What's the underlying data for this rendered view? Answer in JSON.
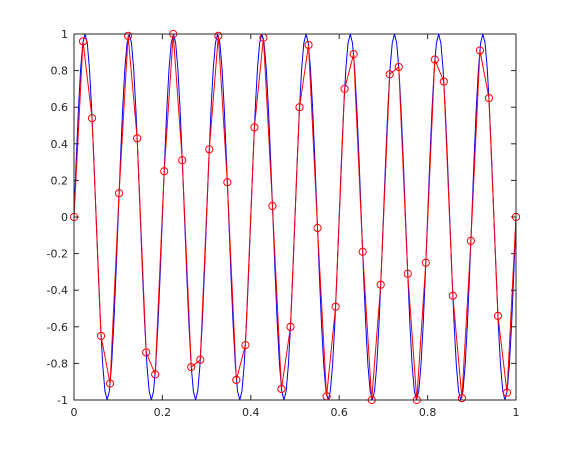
{
  "chart_data": {
    "type": "line",
    "title": "",
    "xlabel": "",
    "ylabel": "",
    "xlim": [
      0,
      1
    ],
    "ylim": [
      -1,
      1
    ],
    "grid": false,
    "x_ticks": [
      0,
      0.2,
      0.4,
      0.6,
      0.8,
      1
    ],
    "x_tick_labels": [
      "0",
      "0.2",
      "0.4",
      "0.6",
      "0.8",
      "1"
    ],
    "y_ticks": [
      -1,
      -0.8,
      -0.6,
      -0.4,
      -0.2,
      0,
      0.2,
      0.4,
      0.6,
      0.8,
      1
    ],
    "y_tick_labels": [
      "-1",
      "-0.8",
      "-0.6",
      "-0.4",
      "-0.2",
      "0",
      "0.2",
      "0.4",
      "0.6",
      "0.8",
      "1"
    ],
    "series": [
      {
        "style": "line",
        "color": "#0000ff",
        "function": "sin(2*pi*10*x)",
        "x_start": 0,
        "x_end": 1,
        "samples": 201
      },
      {
        "style": "line+markers",
        "color": "#ff0000",
        "marker": "circle",
        "x": [
          0,
          0.0204,
          0.0408,
          0.0612,
          0.0816,
          0.102,
          0.1224,
          0.1429,
          0.1633,
          0.1837,
          0.2041,
          0.2245,
          0.2449,
          0.2653,
          0.2857,
          0.3061,
          0.3265,
          0.3469,
          0.3673,
          0.3878,
          0.4082,
          0.4286,
          0.449,
          0.4694,
          0.4898,
          0.5102,
          0.5306,
          0.551,
          0.5714,
          0.5918,
          0.6122,
          0.6327,
          0.6531,
          0.6735,
          0.6939,
          0.7143,
          0.7347,
          0.7551,
          0.7755,
          0.7959,
          0.8163,
          0.8367,
          0.8571,
          0.8776,
          0.898,
          0.9184,
          0.9388,
          0.9592,
          0.9796,
          1
        ],
        "y": [
          0,
          0.96,
          0.54,
          -0.65,
          -0.91,
          0.13,
          0.99,
          0.43,
          -0.74,
          -0.86,
          0.25,
          1.0,
          0.31,
          -0.82,
          -0.78,
          0.37,
          0.99,
          0.19,
          -0.89,
          -0.7,
          0.49,
          0.98,
          0.06,
          -0.94,
          -0.6,
          0.6,
          0.94,
          -0.06,
          -0.98,
          -0.49,
          0.7,
          0.89,
          -0.19,
          -1.0,
          -0.37,
          0.78,
          0.82,
          -0.31,
          -1.0,
          -0.25,
          0.86,
          0.74,
          -0.43,
          -0.99,
          -0.13,
          0.91,
          0.65,
          -0.54,
          -0.96,
          0
        ]
      }
    ]
  }
}
